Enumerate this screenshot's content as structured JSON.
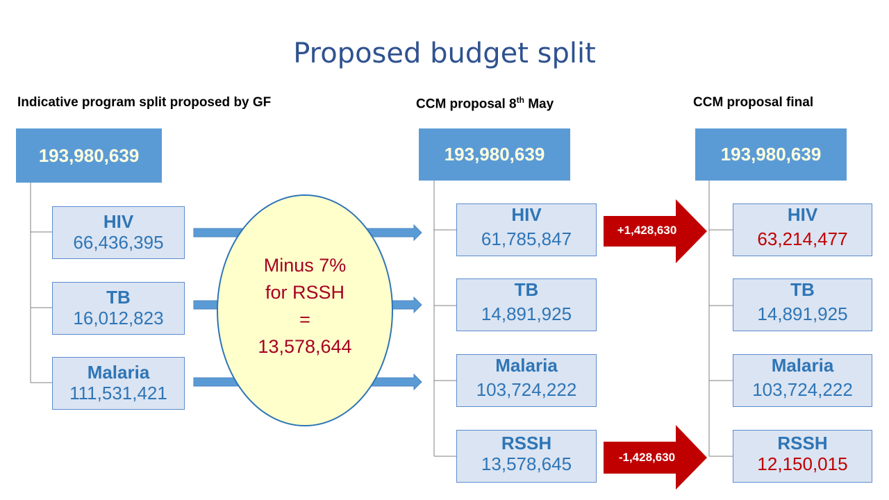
{
  "title": "Proposed budget split",
  "columns": [
    {
      "heading": "Indicative program split proposed by GF",
      "total": "193,980,639",
      "items": [
        {
          "label": "HIV",
          "value": "66,436,395"
        },
        {
          "label": "TB",
          "value": "16,012,823"
        },
        {
          "label": "Malaria",
          "value": "111,531,421"
        }
      ]
    },
    {
      "heading": "CCM proposal 8",
      "heading_sup": "th",
      "heading_tail": " May",
      "total": "193,980,639",
      "items": [
        {
          "label": "HIV",
          "value": "61,785,847"
        },
        {
          "label": "TB",
          "value": "14,891,925"
        },
        {
          "label": "Malaria",
          "value": "103,724,222"
        },
        {
          "label": "RSSH",
          "value": "13,578,645"
        }
      ]
    },
    {
      "heading": "CCM proposal final",
      "total": "193,980,639",
      "items": [
        {
          "label": "HIV",
          "value": "63,214,477"
        },
        {
          "label": "TB",
          "value": "14,891,925"
        },
        {
          "label": "Malaria",
          "value": "103,724,222"
        },
        {
          "label": "RSSH",
          "value": "12,150,015"
        }
      ]
    }
  ],
  "oval": {
    "line1": "Minus 7%",
    "line2": "for RSSH",
    "line3": "=",
    "line4": "13,578,644"
  },
  "transfers": {
    "up": "+1,428,630",
    "down": "-1,428,630"
  },
  "colors": {
    "title": "#2f528f",
    "total_box": "#5b9bd5",
    "item_box": "#dbe4f2",
    "item_text": "#2e75b6",
    "changed_value": "#c00000",
    "oval_fill": "#ffffcc",
    "oval_text": "#a50021",
    "transfer_arrow": "#c00000"
  }
}
